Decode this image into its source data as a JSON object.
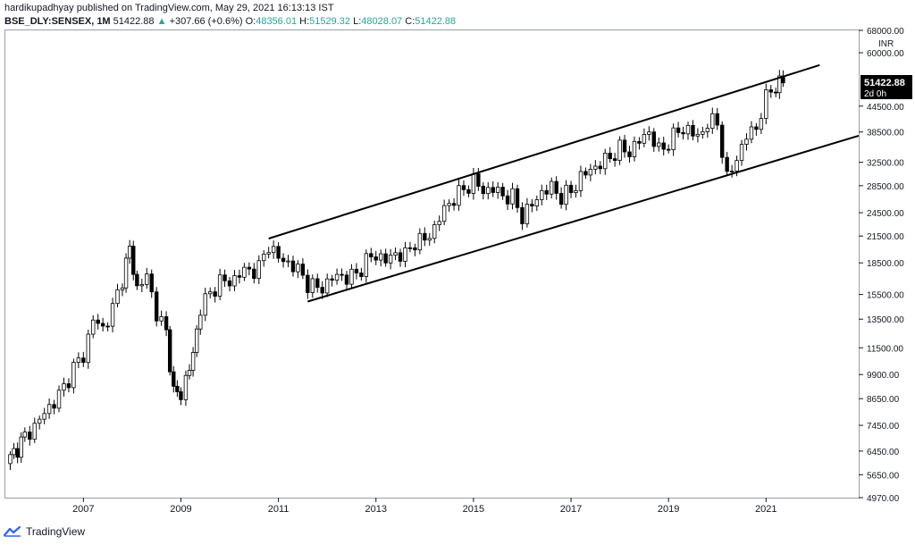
{
  "header": {
    "published_line": "hardikupadhyay published on TradingView.com, May 29, 2021 16:13:13 IST",
    "symbol": "BSE_DLY:SENSEX, 1M",
    "last": "51422.88",
    "change": "+307.66 (+0.6%)",
    "open_label": "O:",
    "open": "48356.01",
    "high_label": "H:",
    "high": "51529.32",
    "low_label": "L:",
    "low": "48028.07",
    "close_label": "C:",
    "close": "51422.88"
  },
  "footer": {
    "brand": "TradingView",
    "logo_icon": "tradingview-logo-icon"
  },
  "colors": {
    "candle": "#000000",
    "text": "#131722",
    "up": "#26a69a",
    "price_tag_bg": "#000000"
  },
  "chart_data": {
    "type": "candlestick",
    "scale": "log",
    "currency": "INR",
    "ylim": [
      4970,
      68000
    ],
    "xlim": [
      2005.4,
      2022.9
    ],
    "y_ticks": [
      "68000.00",
      "60000.00",
      "51422.88",
      "44500.00",
      "38500.00",
      "32500.00",
      "28500.00",
      "24500.00",
      "21500.00",
      "18500.00",
      "15500.00",
      "13500.00",
      "11500.00",
      "9900.00",
      "8650.00",
      "7450.00",
      "6450.00",
      "5650.00",
      "4970.00"
    ],
    "x_ticks": [
      {
        "label": "2007",
        "x": 2007
      },
      {
        "label": "2009",
        "x": 2009
      },
      {
        "label": "2011",
        "x": 2011
      },
      {
        "label": "2013",
        "x": 2013
      },
      {
        "label": "2015",
        "x": 2015
      },
      {
        "label": "2017",
        "x": 2017
      },
      {
        "label": "2019",
        "x": 2019
      },
      {
        "label": "2021",
        "x": 2021
      }
    ],
    "last_price_label": "51422.88",
    "countdown_label": "2d 0h",
    "trendlines": [
      {
        "name": "upper-channel-line",
        "x1": 2010.8,
        "y1": 21200,
        "x2": 2022.1,
        "y2": 56000
      },
      {
        "name": "lower-channel-line",
        "x1": 2011.6,
        "y1": 14900,
        "x2": 2022.9,
        "y2": 37700
      }
    ],
    "closes": [
      [
        2005.5,
        6200
      ],
      [
        2005.8,
        7000
      ],
      [
        2006.0,
        7400
      ],
      [
        2006.2,
        8000
      ],
      [
        2006.4,
        8500
      ],
      [
        2006.6,
        9200
      ],
      [
        2006.8,
        10300
      ],
      [
        2007.0,
        11000
      ],
      [
        2007.2,
        13500
      ],
      [
        2007.4,
        12800
      ],
      [
        2007.6,
        14300
      ],
      [
        2007.8,
        17000
      ],
      [
        2007.95,
        20000
      ],
      [
        2008.1,
        16000
      ],
      [
        2008.3,
        17200
      ],
      [
        2008.5,
        14000
      ],
      [
        2008.7,
        12500
      ],
      [
        2008.85,
        9000
      ],
      [
        2009.0,
        8800
      ],
      [
        2009.1,
        9700
      ],
      [
        2009.25,
        11000
      ],
      [
        2009.4,
        14500
      ],
      [
        2009.6,
        15500
      ],
      [
        2009.8,
        16800
      ],
      [
        2010.0,
        16500
      ],
      [
        2010.2,
        17500
      ],
      [
        2010.4,
        17700
      ],
      [
        2010.6,
        18000
      ],
      [
        2010.8,
        20500
      ],
      [
        2011.0,
        19000
      ],
      [
        2011.2,
        18500
      ],
      [
        2011.4,
        17800
      ],
      [
        2011.6,
        16500
      ],
      [
        2011.8,
        16000
      ],
      [
        2012.0,
        16500
      ],
      [
        2012.2,
        17300
      ],
      [
        2012.4,
        17000
      ],
      [
        2012.6,
        17400
      ],
      [
        2012.8,
        18700
      ],
      [
        2013.0,
        19400
      ],
      [
        2013.2,
        18700
      ],
      [
        2013.4,
        19500
      ],
      [
        2013.6,
        19300
      ],
      [
        2013.8,
        20900
      ],
      [
        2014.0,
        21000
      ],
      [
        2014.2,
        22500
      ],
      [
        2014.4,
        25000
      ],
      [
        2014.6,
        26600
      ],
      [
        2014.8,
        27900
      ],
      [
        2015.0,
        29300
      ],
      [
        2015.2,
        27700
      ],
      [
        2015.4,
        28000
      ],
      [
        2015.6,
        27000
      ],
      [
        2015.8,
        26700
      ],
      [
        2016.0,
        24000
      ],
      [
        2016.2,
        25600
      ],
      [
        2016.4,
        27500
      ],
      [
        2016.6,
        28200
      ],
      [
        2016.8,
        26800
      ],
      [
        2017.0,
        27600
      ],
      [
        2017.2,
        29900
      ],
      [
        2017.4,
        31200
      ],
      [
        2017.6,
        32200
      ],
      [
        2017.8,
        33500
      ],
      [
        2018.0,
        35000
      ],
      [
        2018.2,
        34500
      ],
      [
        2018.4,
        36600
      ],
      [
        2018.6,
        38600
      ],
      [
        2018.8,
        34600
      ],
      [
        2019.0,
        36300
      ],
      [
        2019.2,
        38800
      ],
      [
        2019.4,
        39100
      ],
      [
        2019.6,
        37300
      ],
      [
        2019.8,
        40500
      ],
      [
        2020.0,
        40700
      ],
      [
        2020.2,
        29500
      ],
      [
        2020.4,
        33300
      ],
      [
        2020.6,
        37600
      ],
      [
        2020.8,
        39600
      ],
      [
        2021.0,
        46300
      ],
      [
        2021.1,
        49100
      ],
      [
        2021.2,
        49600
      ],
      [
        2021.35,
        51422.88
      ]
    ]
  }
}
